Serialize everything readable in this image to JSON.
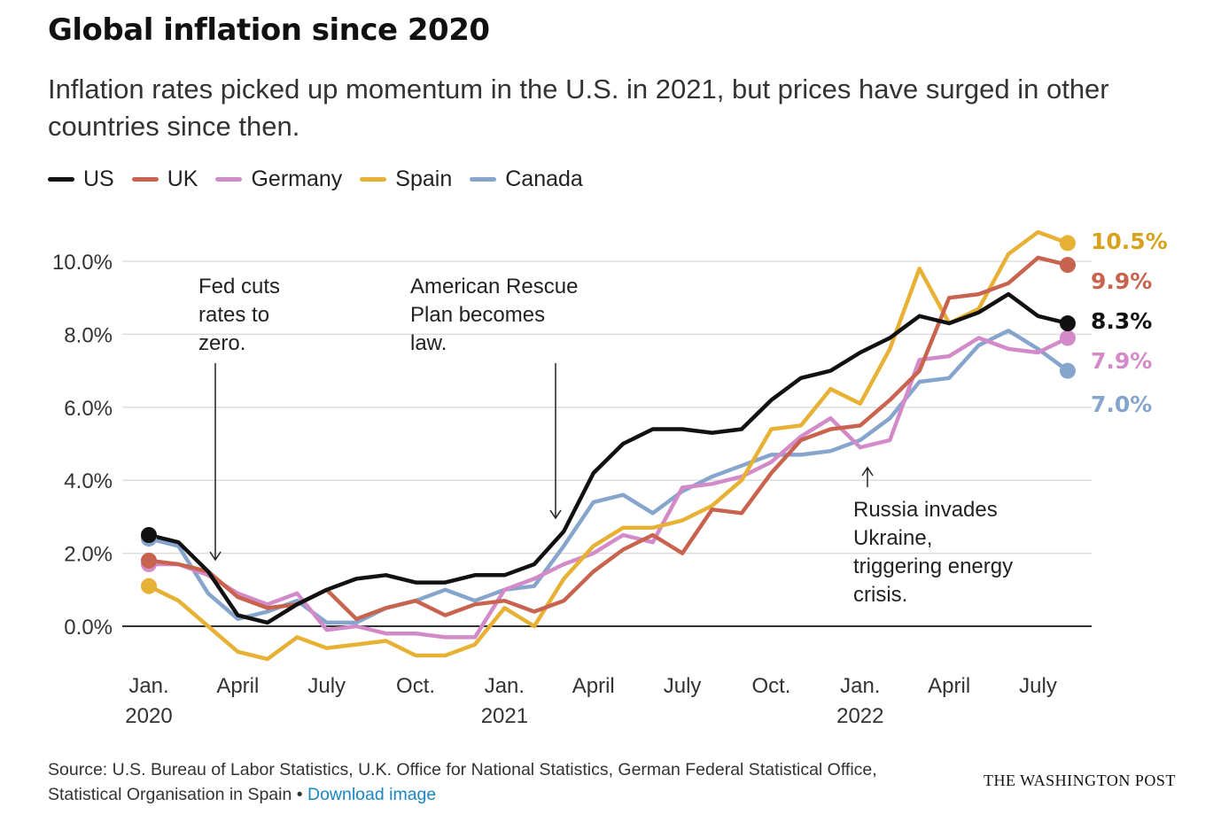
{
  "title": "Global inflation since 2020",
  "subtitle": "Inflation rates picked up momentum in the U.S. in 2021, but prices have surged in other countries since then.",
  "footer": {
    "source": "Source: U.S. Bureau of Labor Statistics, U.K. Office for National Statistics, German Federal Statistical Office, Statistical Organisation in Spain •",
    "link": "Download image",
    "brand": "THE WASHINGTON POST"
  },
  "chart_data": {
    "type": "line",
    "x": [
      "2020-01",
      "2020-02",
      "2020-03",
      "2020-04",
      "2020-05",
      "2020-06",
      "2020-07",
      "2020-08",
      "2020-09",
      "2020-10",
      "2020-11",
      "2020-12",
      "2021-01",
      "2021-02",
      "2021-03",
      "2021-04",
      "2021-05",
      "2021-06",
      "2021-07",
      "2021-08",
      "2021-09",
      "2021-10",
      "2021-11",
      "2021-12",
      "2022-01",
      "2022-02",
      "2022-03",
      "2022-04",
      "2022-05",
      "2022-06",
      "2022-07",
      "2022-08"
    ],
    "x_ticks": [
      {
        "x": "2020-01",
        "label": "Jan.",
        "year": "2020"
      },
      {
        "x": "2020-04",
        "label": "April",
        "year": ""
      },
      {
        "x": "2020-07",
        "label": "July",
        "year": ""
      },
      {
        "x": "2020-10",
        "label": "Oct.",
        "year": ""
      },
      {
        "x": "2021-01",
        "label": "Jan.",
        "year": "2021"
      },
      {
        "x": "2021-04",
        "label": "April",
        "year": ""
      },
      {
        "x": "2021-07",
        "label": "July",
        "year": ""
      },
      {
        "x": "2021-10",
        "label": "Oct.",
        "year": ""
      },
      {
        "x": "2022-01",
        "label": "Jan.",
        "year": "2022"
      },
      {
        "x": "2022-04",
        "label": "April",
        "year": ""
      },
      {
        "x": "2022-07",
        "label": "July",
        "year": ""
      }
    ],
    "y_ticks": [
      {
        "value": 0,
        "label": "0.0%"
      },
      {
        "value": 2,
        "label": "2.0%"
      },
      {
        "value": 4,
        "label": "4.0%"
      },
      {
        "value": 6,
        "label": "6.0%"
      },
      {
        "value": 8,
        "label": "8.0%"
      },
      {
        "value": 10,
        "label": "10.0%"
      }
    ],
    "ylim": [
      -1.2,
      11.0
    ],
    "grid": true,
    "legend_position": "top-left",
    "series": [
      {
        "name": "US",
        "color": "#111111",
        "end_label": "8.3%",
        "label_color": "#111111",
        "values": [
          2.5,
          2.3,
          1.5,
          0.3,
          0.1,
          0.6,
          1.0,
          1.3,
          1.4,
          1.2,
          1.2,
          1.4,
          1.4,
          1.7,
          2.6,
          4.2,
          5.0,
          5.4,
          5.4,
          5.3,
          5.4,
          6.2,
          6.8,
          7.0,
          7.5,
          7.9,
          8.5,
          8.3,
          8.6,
          9.1,
          8.5,
          8.3
        ]
      },
      {
        "name": "UK",
        "color": "#c8634f",
        "end_label": "9.9%",
        "label_color": "#c8634f",
        "values": [
          1.8,
          1.7,
          1.5,
          0.8,
          0.5,
          0.6,
          1.0,
          0.2,
          0.5,
          0.7,
          0.3,
          0.6,
          0.7,
          0.4,
          0.7,
          1.5,
          2.1,
          2.5,
          2.0,
          3.2,
          3.1,
          4.2,
          5.1,
          5.4,
          5.5,
          6.2,
          7.0,
          9.0,
          9.1,
          9.4,
          10.1,
          9.9
        ]
      },
      {
        "name": "Germany",
        "color": "#d38ac8",
        "end_label": "7.9%",
        "label_color": "#d38ac8",
        "values": [
          1.7,
          1.7,
          1.4,
          0.9,
          0.6,
          0.9,
          -0.1,
          0.0,
          -0.2,
          -0.2,
          -0.3,
          -0.3,
          1.0,
          1.3,
          1.7,
          2.0,
          2.5,
          2.3,
          3.8,
          3.9,
          4.1,
          4.5,
          5.2,
          5.7,
          4.9,
          5.1,
          7.3,
          7.4,
          7.9,
          7.6,
          7.5,
          7.9
        ]
      },
      {
        "name": "Spain",
        "color": "#e6b135",
        "end_label": "10.5%",
        "label_color": "#d8a21f",
        "values": [
          1.1,
          0.7,
          0.0,
          -0.7,
          -0.9,
          -0.3,
          -0.6,
          -0.5,
          -0.4,
          -0.8,
          -0.8,
          -0.5,
          0.5,
          0.0,
          1.3,
          2.2,
          2.7,
          2.7,
          2.9,
          3.3,
          4.0,
          5.4,
          5.5,
          6.5,
          6.1,
          7.6,
          9.8,
          8.3,
          8.7,
          10.2,
          10.8,
          10.5
        ]
      },
      {
        "name": "Canada",
        "color": "#86a5cc",
        "end_label": "7.0%",
        "label_color": "#86a5cc",
        "values": [
          2.4,
          2.2,
          0.9,
          0.2,
          0.4,
          0.7,
          0.1,
          0.1,
          0.5,
          0.7,
          1.0,
          0.7,
          1.0,
          1.1,
          2.2,
          3.4,
          3.6,
          3.1,
          3.7,
          4.1,
          4.4,
          4.7,
          4.7,
          4.8,
          5.1,
          5.7,
          6.7,
          6.8,
          7.7,
          8.1,
          7.6,
          7.0
        ]
      }
    ],
    "annotations": [
      {
        "id": "fed",
        "x": "2020-03",
        "text": [
          "Fed cuts",
          "rates to",
          "zero."
        ],
        "arrow": "down"
      },
      {
        "id": "arp",
        "x": "2021-03",
        "text": [
          "American Rescue",
          "Plan becomes",
          "law."
        ],
        "arrow": "down"
      },
      {
        "id": "russia",
        "x": "2022-02",
        "text": [
          "Russia invades",
          "Ukraine,",
          "triggering energy",
          "crisis."
        ],
        "arrow": "up"
      }
    ]
  }
}
